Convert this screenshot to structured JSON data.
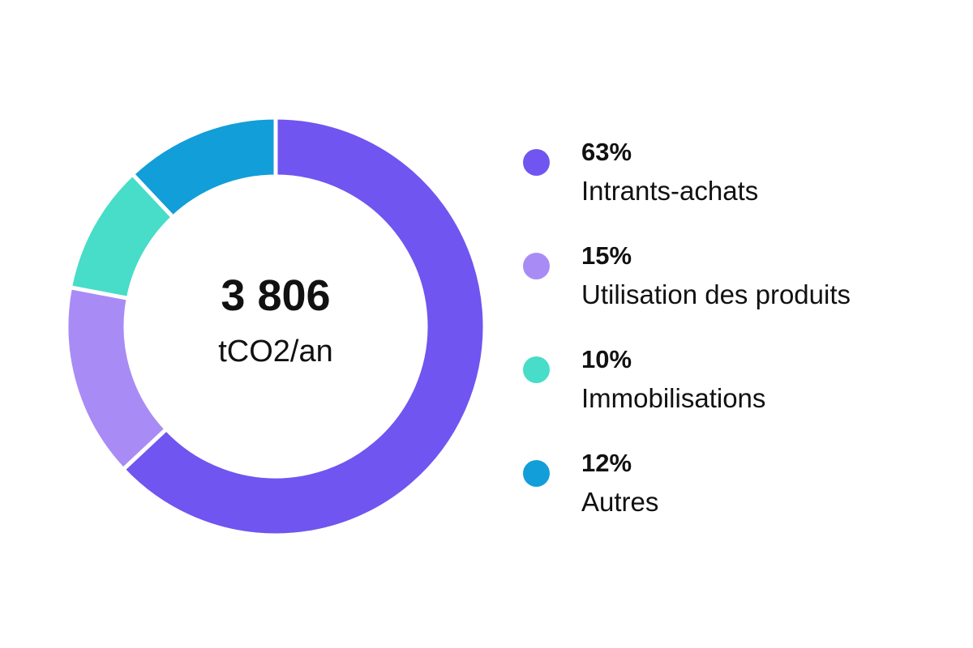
{
  "chart_data": {
    "type": "pie",
    "variant": "donut",
    "center_value": "3 806",
    "center_unit": "tCO2/an",
    "categories": [
      "Intrants-achats",
      "Utilisation des produits",
      "Immobilisations",
      "Autres"
    ],
    "values": [
      63,
      15,
      10,
      12
    ],
    "value_labels": [
      "63%",
      "15%",
      "10%",
      "12%"
    ],
    "colors": [
      "#7055F0",
      "#A98BF5",
      "#47DDC8",
      "#129ED8"
    ],
    "legend_placement": "right"
  }
}
